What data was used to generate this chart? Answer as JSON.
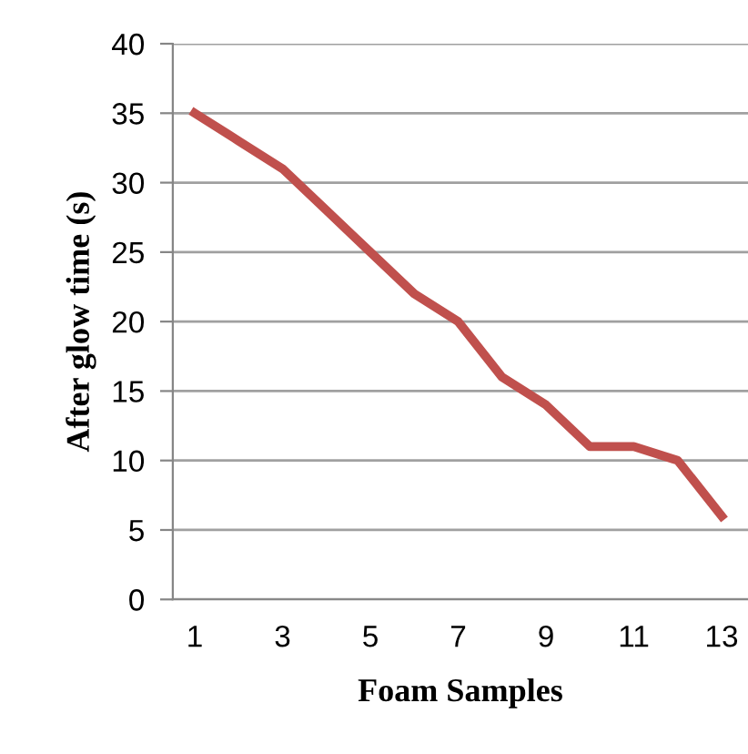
{
  "chart_data": {
    "type": "line",
    "xlabel": "Foam Samples",
    "ylabel": "After glow time (s)",
    "x": [
      1,
      2,
      3,
      4,
      5,
      6,
      7,
      8,
      9,
      10,
      11,
      12,
      13
    ],
    "series": [
      {
        "color": "#c0504d",
        "values": [
          35,
          33,
          31,
          28,
          25,
          22,
          20,
          16,
          14,
          11,
          11,
          10,
          6
        ]
      }
    ],
    "xlim": [
      0.5,
      13.6
    ],
    "xticks": [
      1,
      3,
      5,
      7,
      9,
      11,
      13
    ],
    "ylim": [
      0,
      40
    ],
    "yticks": [
      0,
      5,
      10,
      15,
      20,
      25,
      30,
      35,
      40
    ],
    "grid": "y",
    "marker": "none",
    "line_style": "solid"
  }
}
